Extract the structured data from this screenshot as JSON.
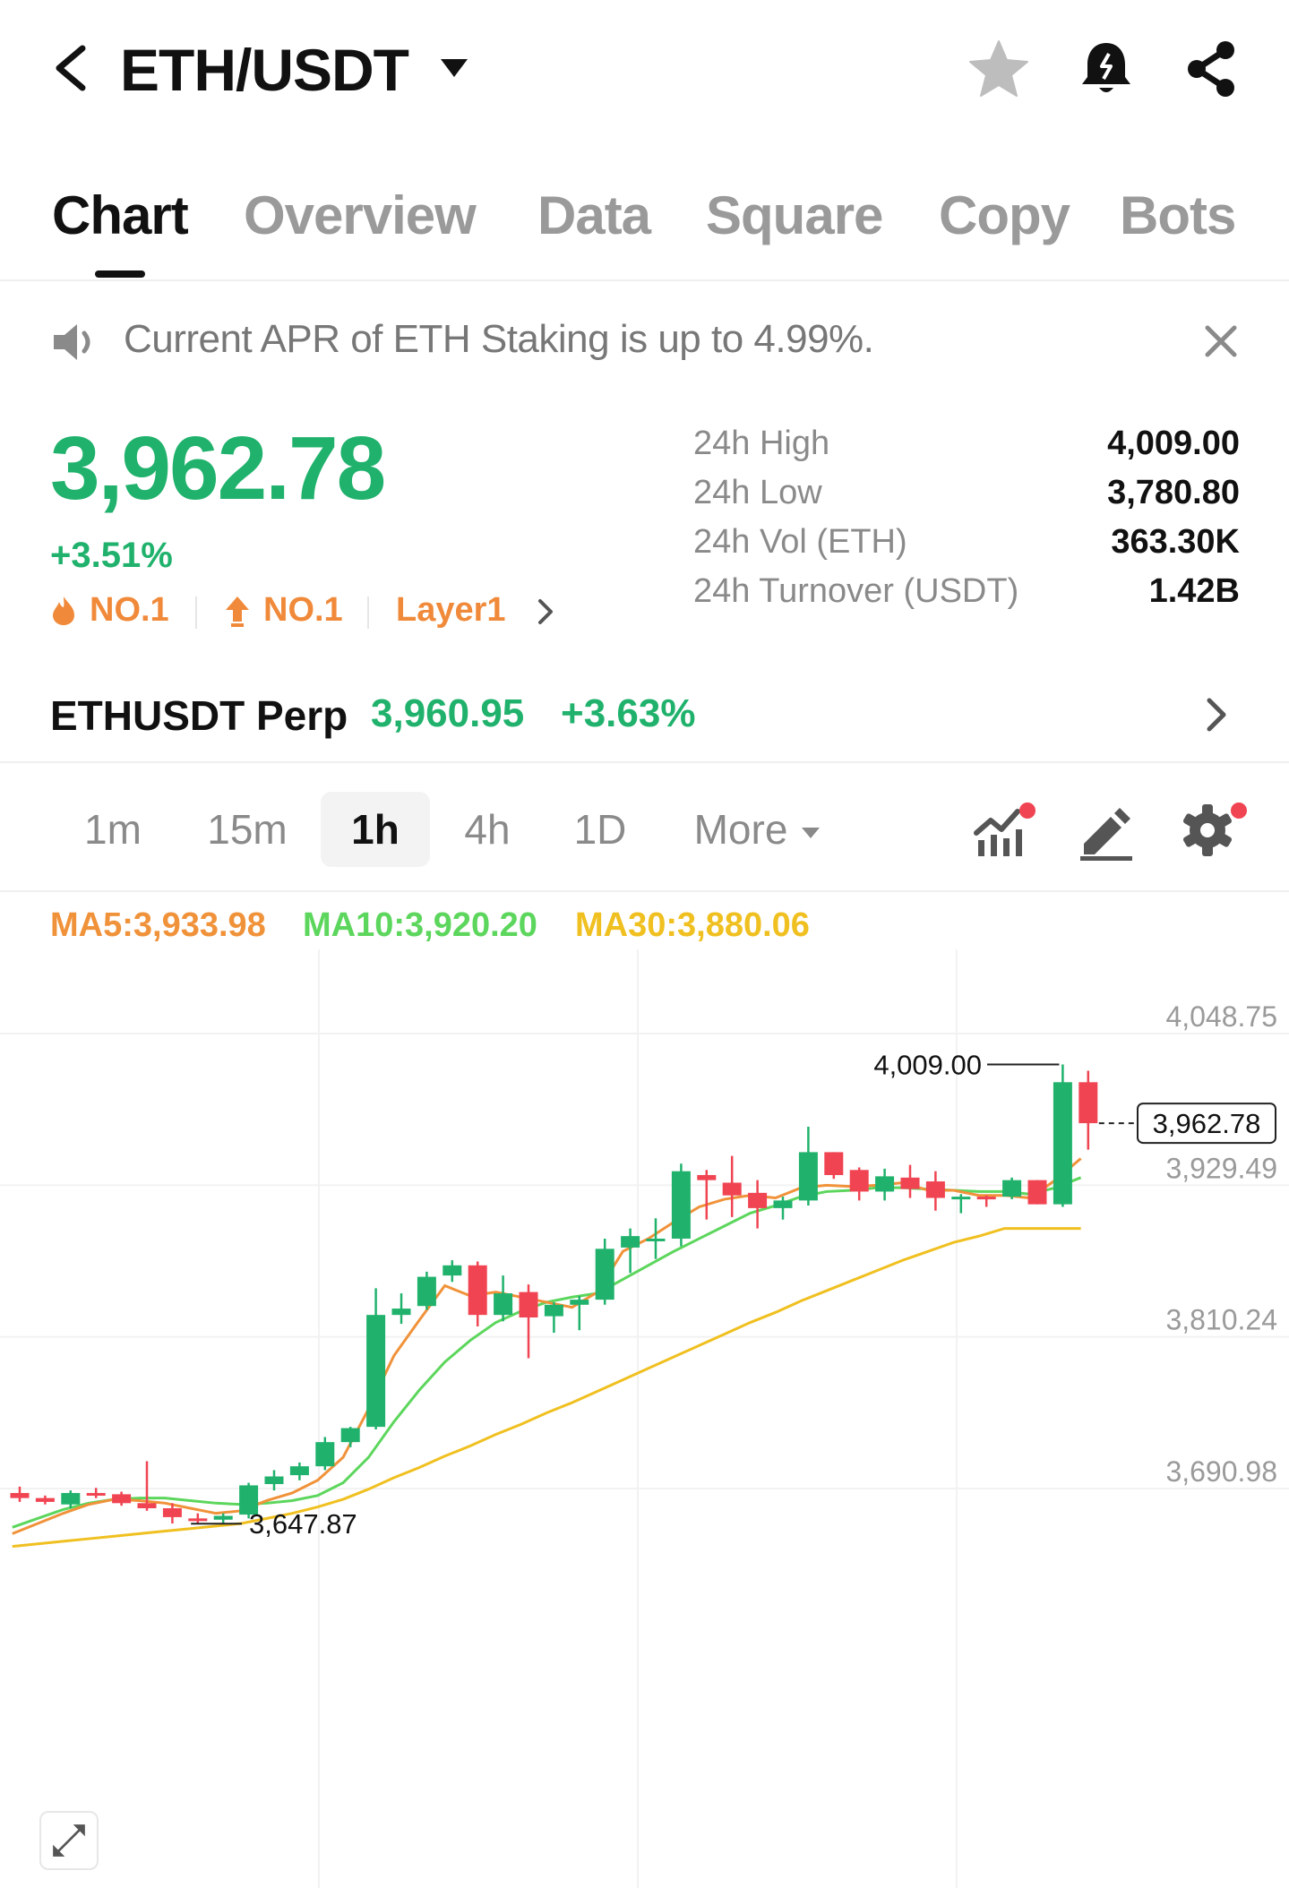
{
  "header": {
    "pair": "ETH/USDT"
  },
  "tabs": [
    {
      "label": "Chart"
    },
    {
      "label": "Overview"
    },
    {
      "label": "Data"
    },
    {
      "label": "Square"
    },
    {
      "label": "Copy"
    },
    {
      "label": "Bots"
    }
  ],
  "announcement": {
    "text": "Current APR of ETH Staking is up to 4.99%."
  },
  "ticker": {
    "last_price": "3,962.78",
    "change_pct": "+3.51%",
    "tags": [
      "NO.1",
      "NO.1",
      "Layer1"
    ],
    "stats": [
      {
        "label": "24h High",
        "value": "4,009.00"
      },
      {
        "label": "24h Low",
        "value": "3,780.80"
      },
      {
        "label": "24h Vol (ETH)",
        "value": "363.30K"
      },
      {
        "label": "24h Turnover (USDT)",
        "value": "1.42B"
      }
    ]
  },
  "perp": {
    "name": "ETHUSDT Perp",
    "price": "3,960.95",
    "change": "+3.63%"
  },
  "intervals": [
    "1m",
    "15m",
    "1h",
    "4h",
    "1D",
    "More"
  ],
  "active_interval": "1h",
  "moving_averages": {
    "ma5": "MA5:3,933.98",
    "ma10": "MA10:3,920.20",
    "ma30": "MA30:3,880.06"
  },
  "colors": {
    "up": "#20b26c",
    "down": "#f04452",
    "ma5": "#f0923a",
    "ma10": "#5cd65c",
    "ma30": "#f0c020",
    "orange": "#f08a3a"
  },
  "chart_data": {
    "type": "candlestick",
    "y_axis_labels": [
      "4,048.75",
      "3,929.49",
      "3,810.24",
      "3,690.98"
    ],
    "ylim": [
      3620,
      4060
    ],
    "high_marker": "4,009.00",
    "low_marker": "3,647.87",
    "current_price_label": "3,962.78",
    "candles": [
      {
        "o": 3672,
        "h": 3677,
        "l": 3665,
        "c": 3668
      },
      {
        "o": 3668,
        "h": 3670,
        "l": 3663,
        "c": 3665
      },
      {
        "o": 3663,
        "h": 3674,
        "l": 3660,
        "c": 3672
      },
      {
        "o": 3672,
        "h": 3676,
        "l": 3668,
        "c": 3670
      },
      {
        "o": 3671,
        "h": 3673,
        "l": 3662,
        "c": 3664
      },
      {
        "o": 3664,
        "h": 3697,
        "l": 3658,
        "c": 3660
      },
      {
        "o": 3660,
        "h": 3664,
        "l": 3648,
        "c": 3653
      },
      {
        "o": 3652,
        "h": 3656,
        "l": 3648,
        "c": 3650
      },
      {
        "o": 3651,
        "h": 3656,
        "l": 3647.87,
        "c": 3654
      },
      {
        "o": 3655,
        "h": 3680,
        "l": 3652,
        "c": 3678
      },
      {
        "o": 3679,
        "h": 3690,
        "l": 3674,
        "c": 3685
      },
      {
        "o": 3686,
        "h": 3696,
        "l": 3682,
        "c": 3693
      },
      {
        "o": 3693,
        "h": 3716,
        "l": 3690,
        "c": 3712
      },
      {
        "o": 3712,
        "h": 3724,
        "l": 3708,
        "c": 3723
      },
      {
        "o": 3724,
        "h": 3833,
        "l": 3722,
        "c": 3812
      },
      {
        "o": 3812,
        "h": 3829,
        "l": 3805,
        "c": 3817
      },
      {
        "o": 3819,
        "h": 3846,
        "l": 3816,
        "c": 3842
      },
      {
        "o": 3843,
        "h": 3855,
        "l": 3838,
        "c": 3851
      },
      {
        "o": 3851,
        "h": 3854,
        "l": 3803,
        "c": 3812
      },
      {
        "o": 3812,
        "h": 3843,
        "l": 3807,
        "c": 3829
      },
      {
        "o": 3830,
        "h": 3836,
        "l": 3778,
        "c": 3810
      },
      {
        "o": 3811,
        "h": 3822,
        "l": 3798,
        "c": 3820
      },
      {
        "o": 3820,
        "h": 3827,
        "l": 3800,
        "c": 3824
      },
      {
        "o": 3824,
        "h": 3872,
        "l": 3820,
        "c": 3864
      },
      {
        "o": 3865,
        "h": 3880,
        "l": 3845,
        "c": 3874
      },
      {
        "o": 3872,
        "h": 3888,
        "l": 3856,
        "c": 3872
      },
      {
        "o": 3872,
        "h": 3931,
        "l": 3866,
        "c": 3925
      },
      {
        "o": 3922,
        "h": 3926,
        "l": 3887,
        "c": 3918
      },
      {
        "o": 3916,
        "h": 3937,
        "l": 3889,
        "c": 3906
      },
      {
        "o": 3908,
        "h": 3918,
        "l": 3880,
        "c": 3896
      },
      {
        "o": 3896,
        "h": 3905,
        "l": 3887,
        "c": 3902
      },
      {
        "o": 3902,
        "h": 3960,
        "l": 3898,
        "c": 3940
      },
      {
        "o": 3940,
        "h": 3940,
        "l": 3919,
        "c": 3922
      },
      {
        "o": 3926,
        "h": 3928,
        "l": 3902,
        "c": 3909
      },
      {
        "o": 3909,
        "h": 3927,
        "l": 3902,
        "c": 3921
      },
      {
        "o": 3920,
        "h": 3930,
        "l": 3904,
        "c": 3911
      },
      {
        "o": 3917,
        "h": 3925,
        "l": 3894,
        "c": 3904
      },
      {
        "o": 3905,
        "h": 3907,
        "l": 3892,
        "c": 3905
      },
      {
        "o": 3905,
        "h": 3906,
        "l": 3897,
        "c": 3904
      },
      {
        "o": 3905,
        "h": 3920,
        "l": 3903,
        "c": 3918
      },
      {
        "o": 3918,
        "h": 3918,
        "l": 3899,
        "c": 3899
      },
      {
        "o": 3899,
        "h": 4009.0,
        "l": 3897,
        "c": 3995
      },
      {
        "o": 3995,
        "h": 4004,
        "l": 3942,
        "c": 3962.78
      }
    ],
    "ma5_values": [
      3640,
      3648,
      3656,
      3663,
      3667,
      3666,
      3664,
      3660,
      3656,
      3658,
      3666,
      3672,
      3682,
      3700,
      3738,
      3780,
      3808,
      3835,
      3827,
      3830,
      3826,
      3822,
      3818,
      3830,
      3862,
      3872,
      3885,
      3897,
      3903,
      3906,
      3904,
      3912,
      3914,
      3913,
      3914,
      3916,
      3910,
      3910,
      3906,
      3906,
      3904,
      3918,
      3935
    ],
    "ma10_values": [
      3645,
      3652,
      3659,
      3664,
      3667,
      3668,
      3668,
      3666,
      3664,
      3663,
      3664,
      3666,
      3670,
      3680,
      3700,
      3728,
      3753,
      3775,
      3792,
      3806,
      3815,
      3822,
      3826,
      3829,
      3840,
      3851,
      3862,
      3872,
      3882,
      3892,
      3898,
      3905,
      3909,
      3910,
      3912,
      3912,
      3911,
      3910,
      3909,
      3909,
      3907,
      3912,
      3920
    ],
    "ma30_values": [
      3630,
      3632,
      3634,
      3636,
      3638,
      3640,
      3642,
      3644,
      3646,
      3648,
      3652,
      3656,
      3661,
      3667,
      3675,
      3684,
      3692,
      3701,
      3709,
      3718,
      3726,
      3735,
      3743,
      3752,
      3761,
      3770,
      3779,
      3788,
      3797,
      3806,
      3814,
      3823,
      3831,
      3839,
      3847,
      3855,
      3862,
      3869,
      3874,
      3880,
      3880,
      3880,
      3880
    ]
  }
}
